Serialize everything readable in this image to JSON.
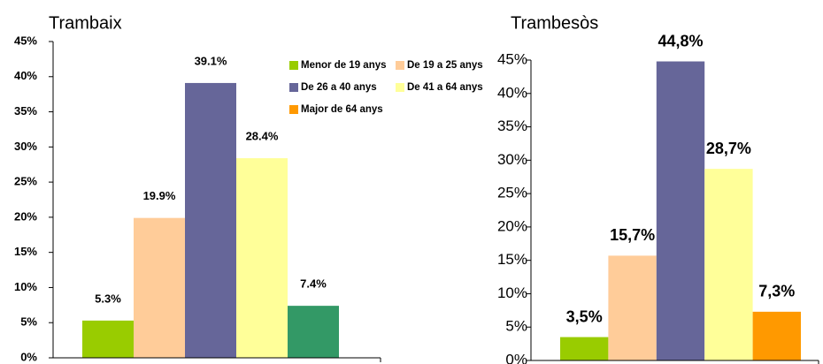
{
  "chart_data": [
    {
      "type": "bar",
      "title": "Trambaix",
      "values": [
        5.3,
        19.9,
        39.1,
        28.4,
        7.4
      ],
      "value_labels": [
        "5.3%",
        "19.9%",
        "39.1%",
        "28.4%",
        "7.4%"
      ],
      "colors": [
        "#99cc00",
        "#ffcc99",
        "#666699",
        "#ffff99",
        "#339966"
      ],
      "ylim": [
        0,
        45
      ],
      "yticks": [
        {
          "value": 0,
          "label": "0%"
        },
        {
          "value": 5,
          "label": "5%"
        },
        {
          "value": 10,
          "label": "10%"
        },
        {
          "value": 15,
          "label": "15%"
        },
        {
          "value": 20,
          "label": "20%"
        },
        {
          "value": 25,
          "label": "25%"
        },
        {
          "value": 30,
          "label": "30%"
        },
        {
          "value": 35,
          "label": "35%"
        },
        {
          "value": 40,
          "label": "40%"
        },
        {
          "value": 45,
          "label": "45%"
        }
      ]
    },
    {
      "type": "bar",
      "title": "Trambesòs",
      "categories": [
        "Menor de 19 anys",
        "De 19 a 25 anys",
        "De 26 a 40 anys",
        "De 41 a 64 anys",
        "Major de 64 anys"
      ],
      "values": [
        3.5,
        15.7,
        44.8,
        28.7,
        7.3
      ],
      "value_labels": [
        "3,5%",
        "15,7%",
        "44,8%",
        "28,7%",
        "7,3%"
      ],
      "colors": [
        "#99cc00",
        "#ffcc99",
        "#666699",
        "#ffff99",
        "#ff9900"
      ],
      "ylim": [
        0,
        45
      ],
      "yticks": [
        {
          "value": 0,
          "label": "0%"
        },
        {
          "value": 5,
          "label": "5%"
        },
        {
          "value": 10,
          "label": "10%"
        },
        {
          "value": 15,
          "label": "15%"
        },
        {
          "value": 20,
          "label": "20%"
        },
        {
          "value": 25,
          "label": "25%"
        },
        {
          "value": 30,
          "label": "30%"
        },
        {
          "value": 35,
          "label": "35%"
        },
        {
          "value": 40,
          "label": "40%"
        },
        {
          "value": 45,
          "label": "45%"
        }
      ],
      "legend": true
    }
  ]
}
